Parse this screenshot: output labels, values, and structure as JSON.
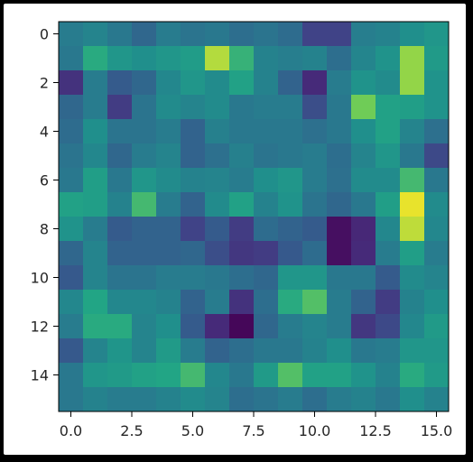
{
  "chart_data": {
    "type": "heatmap",
    "title": "",
    "xlabel": "",
    "ylabel": "",
    "colormap": "viridis",
    "value_range": [
      0,
      1
    ],
    "xlim": [
      -0.5,
      15.5
    ],
    "ylim": [
      15.5,
      -0.5
    ],
    "grid": false,
    "legend": "none",
    "x_ticks": [
      0,
      2.5,
      5,
      7.5,
      10,
      12.5,
      15
    ],
    "x_tick_labels": [
      "0.0",
      "2.5",
      "5.0",
      "7.5",
      "10.0",
      "12.5",
      "15.0"
    ],
    "y_ticks": [
      0,
      2,
      4,
      6,
      8,
      10,
      12,
      14
    ],
    "y_tick_labels": [
      "0",
      "2",
      "4",
      "6",
      "8",
      "10",
      "12",
      "14"
    ],
    "values": [
      [
        0.52,
        0.56,
        0.5,
        0.42,
        0.52,
        0.48,
        0.5,
        0.45,
        0.48,
        0.44,
        0.25,
        0.25,
        0.53,
        0.55,
        0.62,
        0.66
      ],
      [
        0.5,
        0.76,
        0.66,
        0.62,
        0.66,
        0.69,
        0.93,
        0.78,
        0.55,
        0.53,
        0.55,
        0.45,
        0.57,
        0.64,
        0.9,
        0.68
      ],
      [
        0.18,
        0.52,
        0.36,
        0.42,
        0.58,
        0.66,
        0.6,
        0.72,
        0.55,
        0.4,
        0.15,
        0.52,
        0.64,
        0.6,
        0.9,
        0.64
      ],
      [
        0.42,
        0.52,
        0.22,
        0.48,
        0.6,
        0.56,
        0.6,
        0.5,
        0.52,
        0.52,
        0.3,
        0.5,
        0.86,
        0.72,
        0.7,
        0.64
      ],
      [
        0.44,
        0.62,
        0.48,
        0.48,
        0.52,
        0.4,
        0.54,
        0.5,
        0.5,
        0.5,
        0.46,
        0.5,
        0.62,
        0.72,
        0.56,
        0.46
      ],
      [
        0.48,
        0.58,
        0.42,
        0.52,
        0.56,
        0.4,
        0.46,
        0.54,
        0.48,
        0.5,
        0.52,
        0.45,
        0.56,
        0.66,
        0.5,
        0.28
      ],
      [
        0.5,
        0.7,
        0.5,
        0.66,
        0.6,
        0.55,
        0.56,
        0.52,
        0.62,
        0.66,
        0.52,
        0.46,
        0.6,
        0.6,
        0.8,
        0.5
      ],
      [
        0.72,
        0.7,
        0.55,
        0.8,
        0.52,
        0.4,
        0.6,
        0.72,
        0.55,
        0.64,
        0.48,
        0.42,
        0.5,
        0.7,
        0.98,
        0.6
      ],
      [
        0.64,
        0.52,
        0.36,
        0.4,
        0.4,
        0.25,
        0.36,
        0.22,
        0.44,
        0.4,
        0.36,
        0.05,
        0.14,
        0.58,
        0.94,
        0.58
      ],
      [
        0.42,
        0.56,
        0.4,
        0.4,
        0.4,
        0.42,
        0.3,
        0.2,
        0.22,
        0.35,
        0.44,
        0.05,
        0.15,
        0.52,
        0.7,
        0.52
      ],
      [
        0.35,
        0.56,
        0.48,
        0.48,
        0.52,
        0.52,
        0.5,
        0.45,
        0.42,
        0.66,
        0.66,
        0.5,
        0.5,
        0.36,
        0.6,
        0.56
      ],
      [
        0.58,
        0.74,
        0.58,
        0.58,
        0.55,
        0.4,
        0.52,
        0.18,
        0.45,
        0.76,
        0.82,
        0.52,
        0.4,
        0.22,
        0.55,
        0.62
      ],
      [
        0.52,
        0.76,
        0.76,
        0.56,
        0.62,
        0.36,
        0.15,
        0.02,
        0.42,
        0.52,
        0.56,
        0.52,
        0.2,
        0.28,
        0.58,
        0.68
      ],
      [
        0.35,
        0.56,
        0.65,
        0.56,
        0.68,
        0.52,
        0.4,
        0.45,
        0.5,
        0.5,
        0.55,
        0.62,
        0.5,
        0.52,
        0.66,
        0.66
      ],
      [
        0.5,
        0.66,
        0.68,
        0.72,
        0.74,
        0.8,
        0.58,
        0.5,
        0.68,
        0.82,
        0.72,
        0.72,
        0.64,
        0.55,
        0.76,
        0.68
      ],
      [
        0.5,
        0.55,
        0.52,
        0.52,
        0.55,
        0.6,
        0.56,
        0.45,
        0.48,
        0.52,
        0.45,
        0.52,
        0.55,
        0.5,
        0.62,
        0.55
      ]
    ]
  }
}
